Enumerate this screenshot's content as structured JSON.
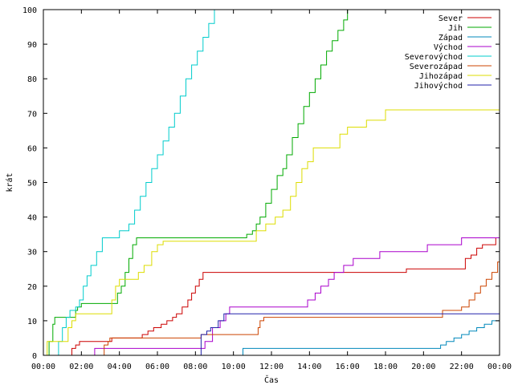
{
  "chart_data": {
    "type": "line",
    "title": "",
    "xlabel": "Čas",
    "ylabel": "krát",
    "xlim": [
      0,
      24
    ],
    "ylim": [
      0,
      100
    ],
    "grid": false,
    "legend_position": "top-right",
    "xticks": [
      {
        "v": 0,
        "label": "00:00"
      },
      {
        "v": 2,
        "label": "02:00"
      },
      {
        "v": 4,
        "label": "04:00"
      },
      {
        "v": 6,
        "label": "06:00"
      },
      {
        "v": 8,
        "label": "08:00"
      },
      {
        "v": 10,
        "label": "10:00"
      },
      {
        "v": 12,
        "label": "12:00"
      },
      {
        "v": 14,
        "label": "14:00"
      },
      {
        "v": 16,
        "label": "16:00"
      },
      {
        "v": 18,
        "label": "18:00"
      },
      {
        "v": 20,
        "label": "20:00"
      },
      {
        "v": 22,
        "label": "22:00"
      },
      {
        "v": 24,
        "label": "00:00"
      }
    ],
    "yticks": [
      0,
      10,
      20,
      30,
      40,
      50,
      60,
      70,
      80,
      90,
      100
    ],
    "series": [
      {
        "name": "Sever",
        "color": "#cc0000",
        "points": [
          [
            1.3,
            0
          ],
          [
            1.5,
            2
          ],
          [
            1.7,
            3
          ],
          [
            1.9,
            4
          ],
          [
            3.5,
            4
          ],
          [
            3.6,
            5
          ],
          [
            5.0,
            5
          ],
          [
            5.2,
            6
          ],
          [
            5.5,
            7
          ],
          [
            5.8,
            8
          ],
          [
            6.2,
            9
          ],
          [
            6.5,
            10
          ],
          [
            6.8,
            11
          ],
          [
            7.0,
            12
          ],
          [
            7.3,
            14
          ],
          [
            7.6,
            16
          ],
          [
            7.8,
            18
          ],
          [
            8.0,
            20
          ],
          [
            8.2,
            22
          ],
          [
            8.4,
            24
          ],
          [
            19.0,
            24
          ],
          [
            19.1,
            25
          ],
          [
            22.0,
            25
          ],
          [
            22.2,
            28
          ],
          [
            22.5,
            29
          ],
          [
            22.8,
            31
          ],
          [
            23.1,
            32
          ],
          [
            23.7,
            32
          ],
          [
            23.8,
            34
          ],
          [
            24.0,
            34
          ]
        ]
      },
      {
        "name": "Jih",
        "color": "#00aa00",
        "points": [
          [
            0.2,
            0
          ],
          [
            0.3,
            4
          ],
          [
            0.5,
            9
          ],
          [
            0.6,
            11
          ],
          [
            1.5,
            11
          ],
          [
            1.7,
            13
          ],
          [
            1.8,
            14
          ],
          [
            2.0,
            15
          ],
          [
            3.8,
            15
          ],
          [
            3.9,
            18
          ],
          [
            4.1,
            20
          ],
          [
            4.3,
            24
          ],
          [
            4.5,
            28
          ],
          [
            4.7,
            32
          ],
          [
            4.9,
            34
          ],
          [
            10.6,
            34
          ],
          [
            10.7,
            35
          ],
          [
            11.0,
            36
          ],
          [
            11.2,
            38
          ],
          [
            11.4,
            40
          ],
          [
            11.7,
            44
          ],
          [
            12.0,
            48
          ],
          [
            12.3,
            52
          ],
          [
            12.6,
            54
          ],
          [
            12.8,
            58
          ],
          [
            13.1,
            63
          ],
          [
            13.4,
            67
          ],
          [
            13.7,
            72
          ],
          [
            14.0,
            76
          ],
          [
            14.3,
            80
          ],
          [
            14.6,
            84
          ],
          [
            14.9,
            88
          ],
          [
            15.2,
            91
          ],
          [
            15.5,
            94
          ],
          [
            15.8,
            97
          ],
          [
            16.0,
            100
          ]
        ]
      },
      {
        "name": "Západ",
        "color": "#0088bb",
        "points": [
          [
            10.4,
            0
          ],
          [
            10.5,
            2
          ],
          [
            20.8,
            2
          ],
          [
            20.9,
            3
          ],
          [
            21.2,
            4
          ],
          [
            21.6,
            5
          ],
          [
            22.0,
            6
          ],
          [
            22.4,
            7
          ],
          [
            22.8,
            8
          ],
          [
            23.2,
            9
          ],
          [
            23.6,
            10
          ],
          [
            24.0,
            10
          ]
        ]
      },
      {
        "name": "Východ",
        "color": "#aa00cc",
        "points": [
          [
            2.6,
            0
          ],
          [
            2.7,
            2
          ],
          [
            8.3,
            2
          ],
          [
            8.5,
            4
          ],
          [
            8.9,
            8
          ],
          [
            9.3,
            10
          ],
          [
            9.6,
            12
          ],
          [
            9.8,
            14
          ],
          [
            13.8,
            14
          ],
          [
            13.9,
            16
          ],
          [
            14.3,
            18
          ],
          [
            14.6,
            20
          ],
          [
            15.0,
            22
          ],
          [
            15.3,
            24
          ],
          [
            15.8,
            26
          ],
          [
            16.3,
            28
          ],
          [
            17.5,
            28
          ],
          [
            17.7,
            30
          ],
          [
            20.0,
            30
          ],
          [
            20.2,
            32
          ],
          [
            21.8,
            32
          ],
          [
            22.0,
            34
          ],
          [
            24.0,
            34
          ]
        ]
      },
      {
        "name": "Severovýchod",
        "color": "#00cccc",
        "points": [
          [
            0.7,
            0
          ],
          [
            0.8,
            4
          ],
          [
            1.0,
            8
          ],
          [
            1.2,
            11
          ],
          [
            1.4,
            13
          ],
          [
            1.7,
            14
          ],
          [
            1.9,
            16
          ],
          [
            2.1,
            20
          ],
          [
            2.3,
            23
          ],
          [
            2.5,
            26
          ],
          [
            2.8,
            30
          ],
          [
            3.1,
            34
          ],
          [
            3.8,
            34
          ],
          [
            4.0,
            36
          ],
          [
            4.5,
            38
          ],
          [
            4.8,
            42
          ],
          [
            5.1,
            46
          ],
          [
            5.4,
            50
          ],
          [
            5.7,
            54
          ],
          [
            6.0,
            58
          ],
          [
            6.3,
            62
          ],
          [
            6.6,
            66
          ],
          [
            6.9,
            70
          ],
          [
            7.2,
            75
          ],
          [
            7.5,
            80
          ],
          [
            7.8,
            84
          ],
          [
            8.1,
            88
          ],
          [
            8.4,
            92
          ],
          [
            8.7,
            96
          ],
          [
            9.0,
            100
          ]
        ]
      },
      {
        "name": "Severozápad",
        "color": "#cc4400",
        "points": [
          [
            3.1,
            0
          ],
          [
            3.2,
            3
          ],
          [
            3.4,
            4
          ],
          [
            3.5,
            5
          ],
          [
            8.2,
            5
          ],
          [
            8.3,
            6
          ],
          [
            11.2,
            6
          ],
          [
            11.3,
            8
          ],
          [
            11.4,
            10
          ],
          [
            11.6,
            11
          ],
          [
            20.8,
            11
          ],
          [
            21.0,
            13
          ],
          [
            22.0,
            14
          ],
          [
            22.4,
            16
          ],
          [
            22.7,
            18
          ],
          [
            23.0,
            20
          ],
          [
            23.3,
            22
          ],
          [
            23.6,
            24
          ],
          [
            23.9,
            27
          ],
          [
            24.0,
            27
          ]
        ]
      },
      {
        "name": "Jihozápad",
        "color": "#dddd00",
        "points": [
          [
            0.1,
            0
          ],
          [
            0.2,
            4
          ],
          [
            1.1,
            4
          ],
          [
            1.3,
            8
          ],
          [
            1.5,
            10
          ],
          [
            1.7,
            12
          ],
          [
            3.4,
            12
          ],
          [
            3.6,
            16
          ],
          [
            3.8,
            20
          ],
          [
            4.0,
            22
          ],
          [
            4.8,
            22
          ],
          [
            5.0,
            24
          ],
          [
            5.3,
            26
          ],
          [
            5.7,
            30
          ],
          [
            6.0,
            32
          ],
          [
            6.3,
            33
          ],
          [
            11.0,
            33
          ],
          [
            11.2,
            36
          ],
          [
            11.7,
            38
          ],
          [
            12.2,
            40
          ],
          [
            12.6,
            42
          ],
          [
            13.0,
            46
          ],
          [
            13.3,
            50
          ],
          [
            13.6,
            54
          ],
          [
            13.9,
            56
          ],
          [
            14.2,
            60
          ],
          [
            15.3,
            60
          ],
          [
            15.6,
            64
          ],
          [
            16.0,
            66
          ],
          [
            16.8,
            66
          ],
          [
            17.0,
            68
          ],
          [
            17.8,
            68
          ],
          [
            18.0,
            71
          ],
          [
            24.0,
            71
          ]
        ]
      },
      {
        "name": "Jihovýchod",
        "color": "#2222aa",
        "points": [
          [
            8.2,
            0
          ],
          [
            8.3,
            6
          ],
          [
            8.6,
            7
          ],
          [
            8.8,
            8
          ],
          [
            9.0,
            8
          ],
          [
            9.2,
            10
          ],
          [
            9.5,
            12
          ],
          [
            24.0,
            12
          ]
        ]
      }
    ]
  }
}
